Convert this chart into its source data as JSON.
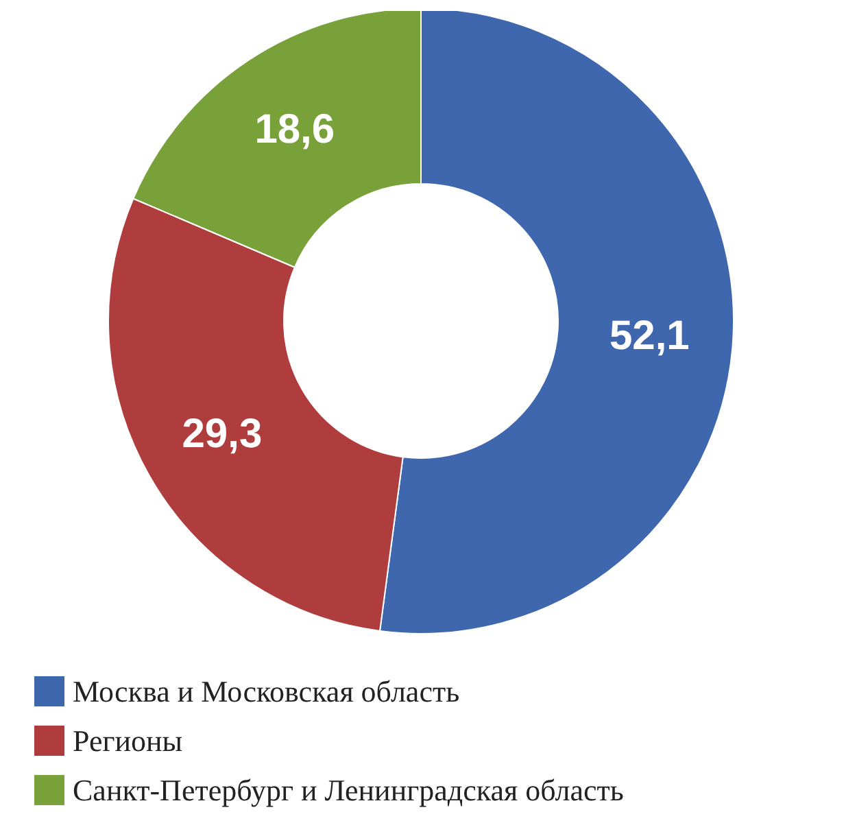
{
  "chart_data": {
    "type": "donut",
    "categories": [
      "Москва и Московская область",
      "Регионы",
      "Санкт-Петербург и Ленинградская область"
    ],
    "values": [
      52.1,
      29.3,
      18.6
    ],
    "colors": [
      "#3f67ae",
      "#b03d3e",
      "#79a13a"
    ],
    "value_labels": [
      "52,1",
      "29,3",
      "18,6"
    ],
    "legend": "bottom left"
  }
}
